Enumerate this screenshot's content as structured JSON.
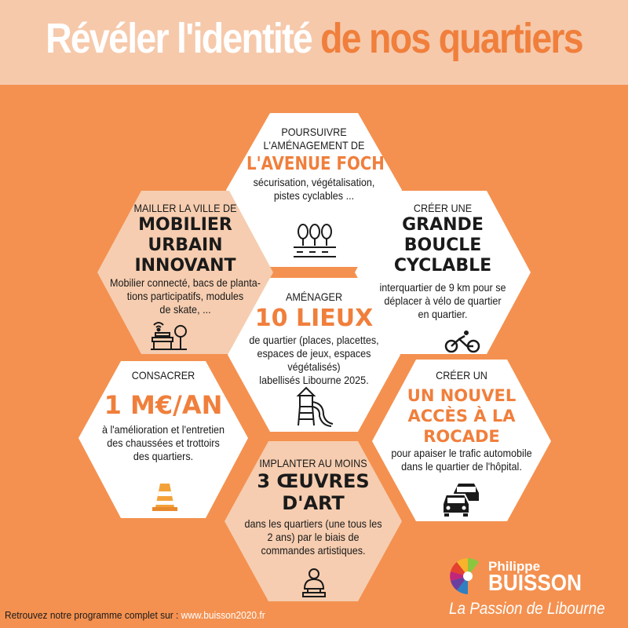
{
  "title": {
    "part1": "Révéler l'identité ",
    "part2": "de nos quartiers"
  },
  "hexagons": {
    "foch": {
      "line1": "POURSUIVRE",
      "line2": "L'AMÉNAGEMENT DE",
      "highlight": "L'AVENUE FOCH",
      "desc1": "sécurisation, végétalisation,",
      "desc2": "pistes cyclables ..."
    },
    "mobilier": {
      "intro": "MAILLER LA VILLE DE",
      "b1": "MOBILIER",
      "b2": "URBAIN",
      "b3": "INNOVANT",
      "d1": "Mobilier connecté, bacs de planta-",
      "d2": "tions participatifs, modules",
      "d3": "de skate, ..."
    },
    "boucle": {
      "intro": "CRÉER UNE",
      "b1": "GRANDE",
      "b2": "BOUCLE",
      "b3": "CYCLABLE",
      "d1": "interquartier de 9 km pour se",
      "d2": "déplacer à vélo de quartier",
      "d3": "en quartier."
    },
    "lieux": {
      "intro": "AMÉNAGER",
      "highlight": "10 LIEUX",
      "d1": "de quartier (places, placettes,",
      "d2": "espaces de jeux, espaces végétalisés)",
      "d3": "labellisés Libourne 2025."
    },
    "budget": {
      "intro": "CONSACRER",
      "highlight": "1 M€/AN",
      "d1": "à l'amélioration et l'entretien",
      "d2": "des chaussées et trottoirs",
      "d3": "des quartiers."
    },
    "rocade": {
      "intro": "CRÉER UN",
      "h1": "UN NOUVEL",
      "h2": "ACCÈS À LA",
      "h3": "ROCADE",
      "d1": "pour apaiser le trafic automobile",
      "d2": "dans le quartier de l'hôpital."
    },
    "art": {
      "intro": "IMPLANTER AU MOINS",
      "b1": "3 ŒUVRES",
      "b2": "D'ART",
      "d1": "dans les quartiers (une tous les",
      "d2": "2 ans) par le biais de",
      "d3": "commandes artistiques."
    }
  },
  "icons": [
    "trees-road-icon",
    "bench-wifi-icon",
    "bicycle-icon",
    "playground-slide-icon",
    "traffic-cone-icon",
    "traffic-cars-icon",
    "bust-statue-icon"
  ],
  "footer": {
    "text": "Retrouvez notre programme complet sur : ",
    "url": "www.buisson2020.fr"
  },
  "logo": {
    "first": "Philippe",
    "last": "BUISSON",
    "slogan": "La Passion de Libourne"
  },
  "colors": {
    "background": "#f49150",
    "header": "#f6c9ab",
    "accent": "#f07f3c",
    "hex_white": "#ffffff",
    "hex_peach": "#f6cdb0"
  }
}
